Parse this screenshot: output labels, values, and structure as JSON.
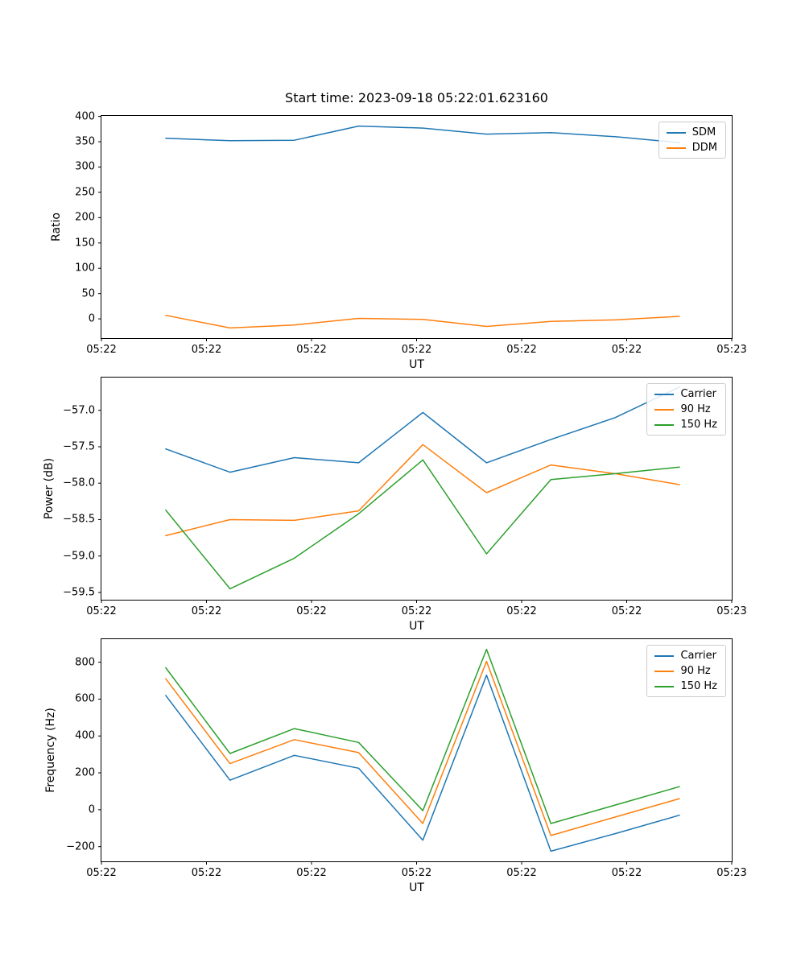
{
  "figure": {
    "background": "#ffffff",
    "frame_color": "#000000"
  },
  "chart_data": [
    {
      "type": "line",
      "title": "Start time: 2023-09-18 05:22:01.623160",
      "xlabel": "UT",
      "ylabel": "Ratio",
      "grid": false,
      "legend_position": "upper right",
      "xtick_labels": [
        "05:22",
        "05:22",
        "05:22",
        "05:22",
        "05:22",
        "05:22",
        "05:23"
      ],
      "x": [
        0.102,
        0.204,
        0.306,
        0.408,
        0.51,
        0.611,
        0.713,
        0.815,
        0.917
      ],
      "ylim": [
        -38,
        401
      ],
      "ytick_values": [
        0,
        50,
        100,
        150,
        200,
        250,
        300,
        350,
        400
      ],
      "ytick_labels": [
        "0",
        "50",
        "100",
        "150",
        "200",
        "250",
        "300",
        "350",
        "400"
      ],
      "series": [
        {
          "name": "SDM",
          "color": "#1f77b4",
          "values": [
            357,
            352,
            353,
            381,
            377,
            365,
            368,
            360,
            348
          ]
        },
        {
          "name": "DDM",
          "color": "#ff7f0e",
          "values": [
            7,
            -18,
            -12,
            1,
            -1,
            -15,
            -5,
            -2,
            5
          ]
        }
      ]
    },
    {
      "type": "line",
      "title": "",
      "xlabel": "UT",
      "ylabel": "Power (dB)",
      "grid": false,
      "legend_position": "upper right",
      "xtick_labels": [
        "05:22",
        "05:22",
        "05:22",
        "05:22",
        "05:22",
        "05:22",
        "05:23"
      ],
      "x": [
        0.102,
        0.204,
        0.306,
        0.408,
        0.51,
        0.611,
        0.713,
        0.815,
        0.917
      ],
      "ylim": [
        -59.6,
        -56.55
      ],
      "ytick_values": [
        -59.5,
        -59.0,
        -58.5,
        -58.0,
        -57.5,
        -57.0
      ],
      "ytick_labels": [
        "−59.5",
        "−59.0",
        "−58.5",
        "−58.0",
        "−57.5",
        "−57.0"
      ],
      "series": [
        {
          "name": "Carrier",
          "color": "#1f77b4",
          "values": [
            -57.53,
            -57.85,
            -57.65,
            -57.72,
            -57.03,
            -57.72,
            -57.4,
            -57.1,
            -56.68
          ]
        },
        {
          "name": "90 Hz",
          "color": "#ff7f0e",
          "values": [
            -58.72,
            -58.5,
            -58.51,
            -58.38,
            -57.47,
            -58.13,
            -57.75,
            -57.87,
            -58.02
          ]
        },
        {
          "name": "150 Hz",
          "color": "#2ca02c",
          "values": [
            -58.37,
            -59.45,
            -59.03,
            -58.42,
            -57.68,
            -58.97,
            -57.95,
            -57.87,
            -57.78
          ]
        }
      ]
    },
    {
      "type": "line",
      "title": "",
      "xlabel": "UT",
      "ylabel": "Frequency (Hz)",
      "grid": false,
      "legend_position": "upper right",
      "xtick_labels": [
        "05:22",
        "05:22",
        "05:22",
        "05:22",
        "05:22",
        "05:22",
        "05:23"
      ],
      "x": [
        0.102,
        0.204,
        0.306,
        0.408,
        0.51,
        0.611,
        0.713,
        0.815,
        0.917
      ],
      "ylim": [
        -280,
        925
      ],
      "ytick_values": [
        -200,
        0,
        200,
        400,
        600,
        800
      ],
      "ytick_labels": [
        "−200",
        "0",
        "200",
        "400",
        "600",
        "800"
      ],
      "series": [
        {
          "name": "Carrier",
          "color": "#1f77b4",
          "values": [
            620,
            160,
            295,
            225,
            -165,
            730,
            -225,
            -130,
            -30
          ]
        },
        {
          "name": "90 Hz",
          "color": "#ff7f0e",
          "values": [
            710,
            250,
            380,
            310,
            -75,
            805,
            -140,
            -40,
            60
          ]
        },
        {
          "name": "150 Hz",
          "color": "#2ca02c",
          "values": [
            770,
            305,
            440,
            365,
            -5,
            870,
            -75,
            25,
            125
          ]
        }
      ]
    }
  ]
}
